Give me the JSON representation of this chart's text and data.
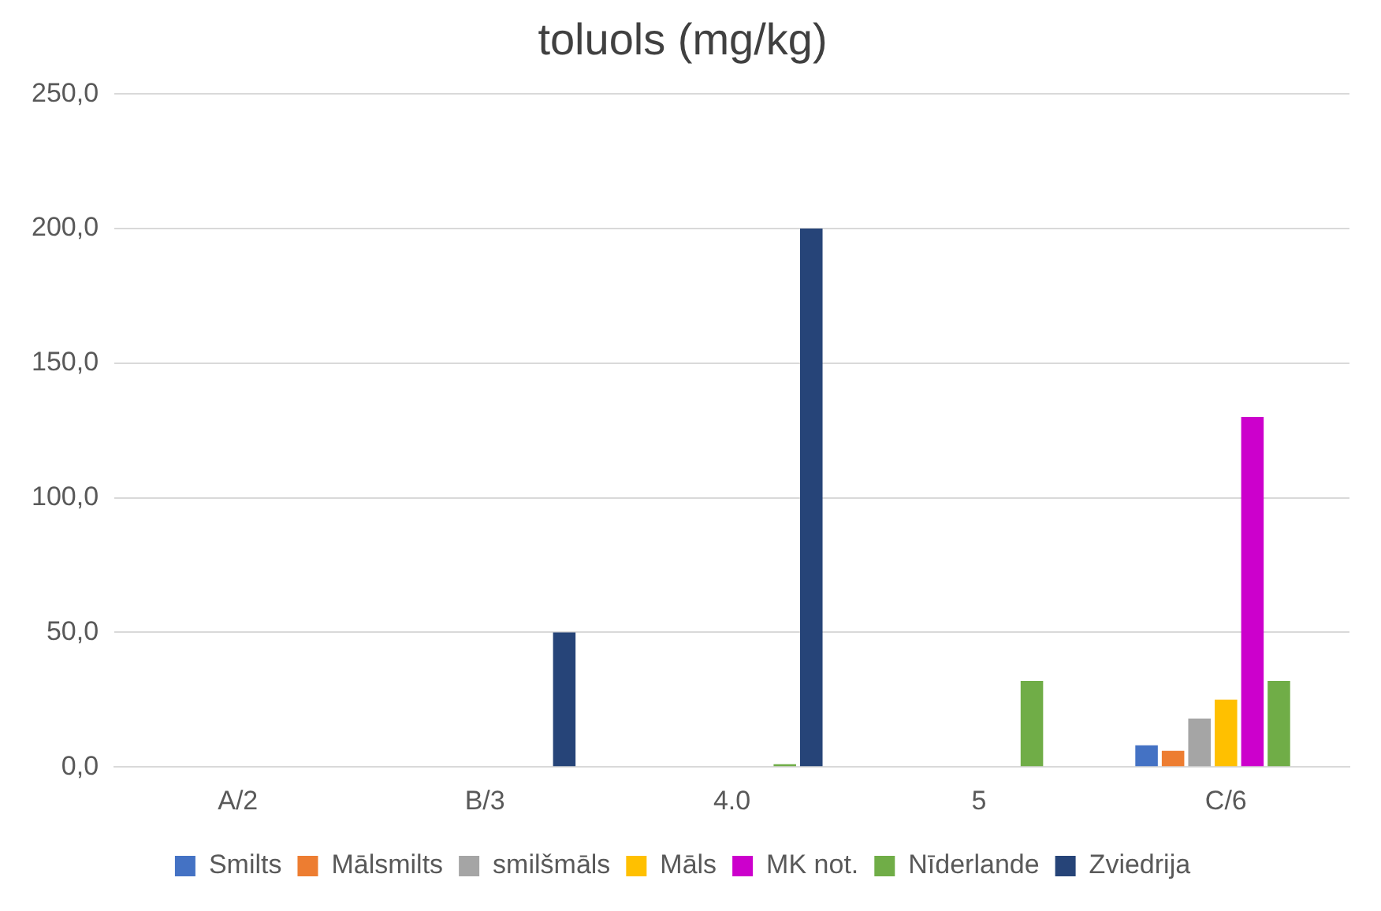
{
  "chart_data": {
    "type": "bar",
    "title": "toluols (mg/kg)",
    "categories": [
      "A/2",
      "B/3",
      "4.0",
      "5",
      "C/6"
    ],
    "series": [
      {
        "name": "Smilts",
        "color": "#4472c4",
        "values": [
          null,
          null,
          null,
          null,
          8
        ]
      },
      {
        "name": "Mālsmilts",
        "color": "#ed7d31",
        "values": [
          null,
          null,
          null,
          null,
          6
        ]
      },
      {
        "name": "smilšmāls",
        "color": "#a5a5a5",
        "values": [
          null,
          null,
          null,
          null,
          18
        ]
      },
      {
        "name": "Māls",
        "color": "#ffc000",
        "values": [
          null,
          null,
          null,
          null,
          25
        ]
      },
      {
        "name": "MK not.",
        "color": "#cc00cc",
        "values": [
          null,
          null,
          null,
          null,
          130
        ]
      },
      {
        "name": "Nīderlande",
        "color": "#70ad47",
        "values": [
          null,
          null,
          1,
          32,
          32
        ]
      },
      {
        "name": "Zviedrija",
        "color": "#264478",
        "values": [
          null,
          50,
          200,
          null,
          null
        ]
      }
    ],
    "ylim": [
      0,
      250
    ],
    "yticks": [
      {
        "value": 0,
        "label": "0,0"
      },
      {
        "value": 50,
        "label": "50,0"
      },
      {
        "value": 100,
        "label": "100,0"
      },
      {
        "value": 150,
        "label": "150,0"
      },
      {
        "value": 200,
        "label": "200,0"
      },
      {
        "value": 250,
        "label": "250,0"
      }
    ],
    "grid": "y",
    "legend": "bottom"
  }
}
